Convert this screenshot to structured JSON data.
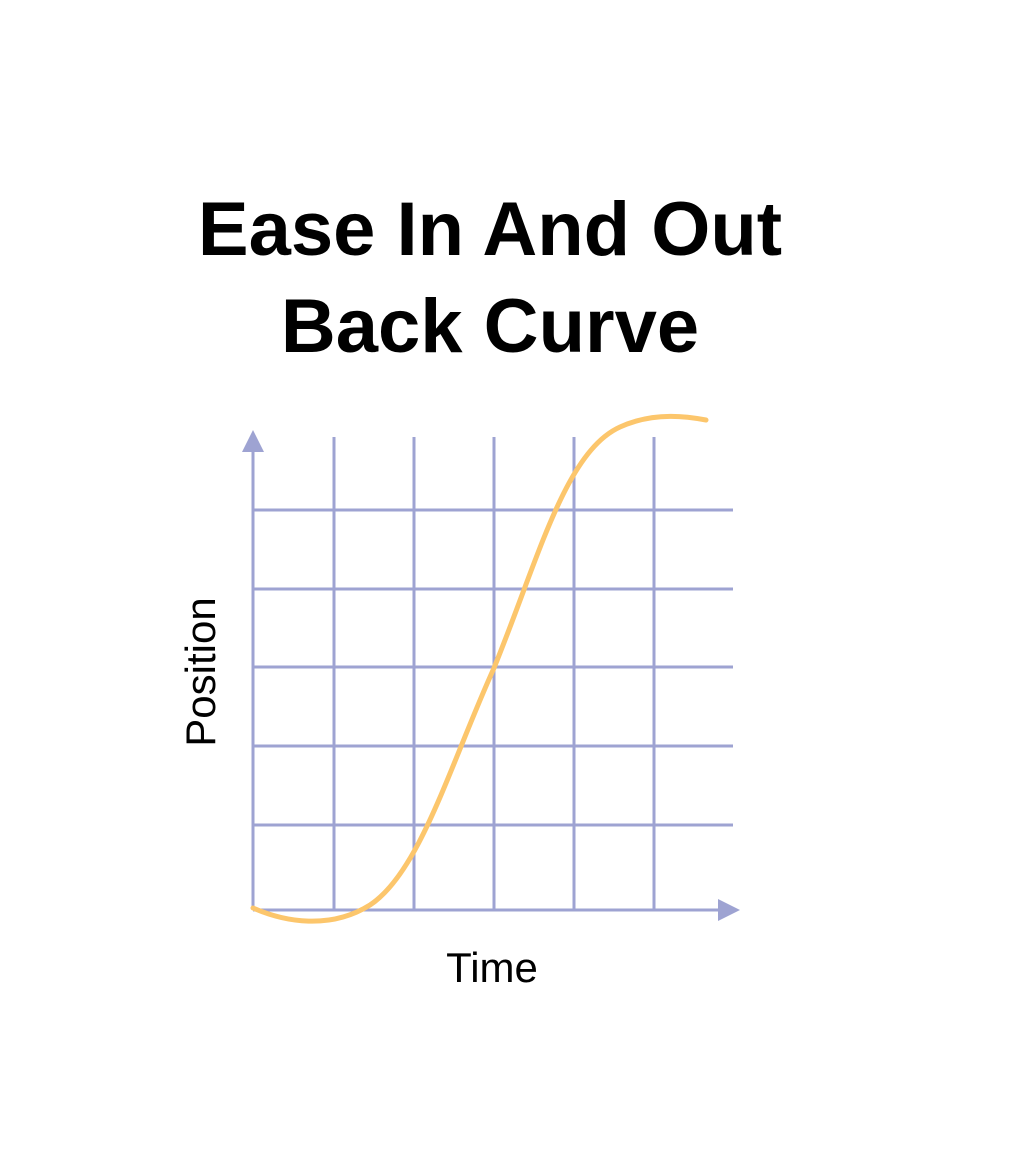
{
  "title": [
    "Ease In And Out",
    "Back Curve"
  ],
  "x_label": "Time",
  "y_label": "Position"
}
